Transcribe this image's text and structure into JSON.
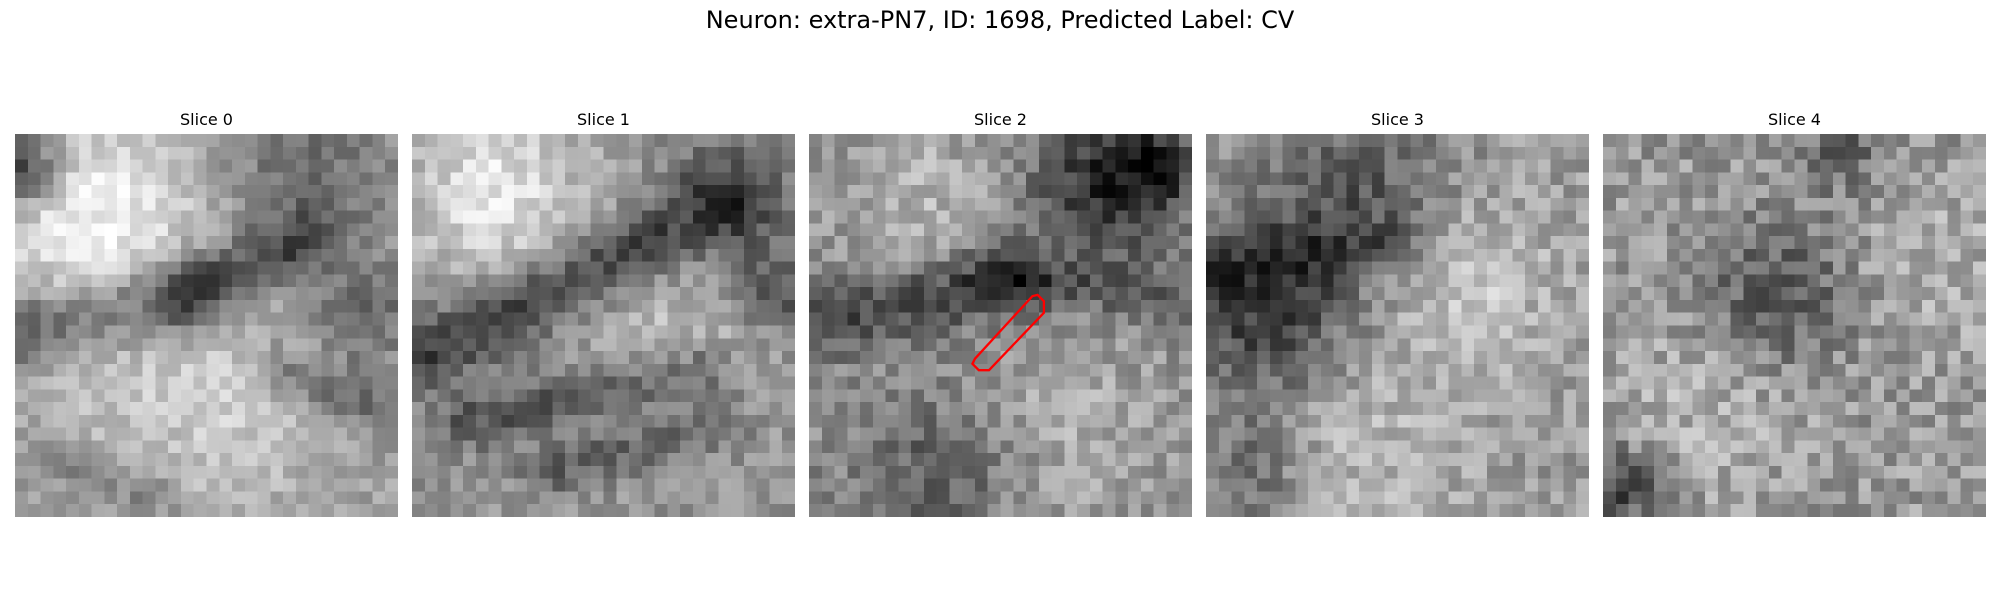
{
  "figure": {
    "title": "Neuron: extra-PN7, ID: 1698, Predicted Label: CV"
  },
  "panels": [
    {
      "title": "Slice 0"
    },
    {
      "title": "Slice 1"
    },
    {
      "title": "Slice 2"
    },
    {
      "title": "Slice 3"
    },
    {
      "title": "Slice 4"
    }
  ],
  "overlay": {
    "panel_index": 2,
    "color": "#ff0000",
    "shape": "thin-polygon-outline"
  },
  "colormap": "gray"
}
